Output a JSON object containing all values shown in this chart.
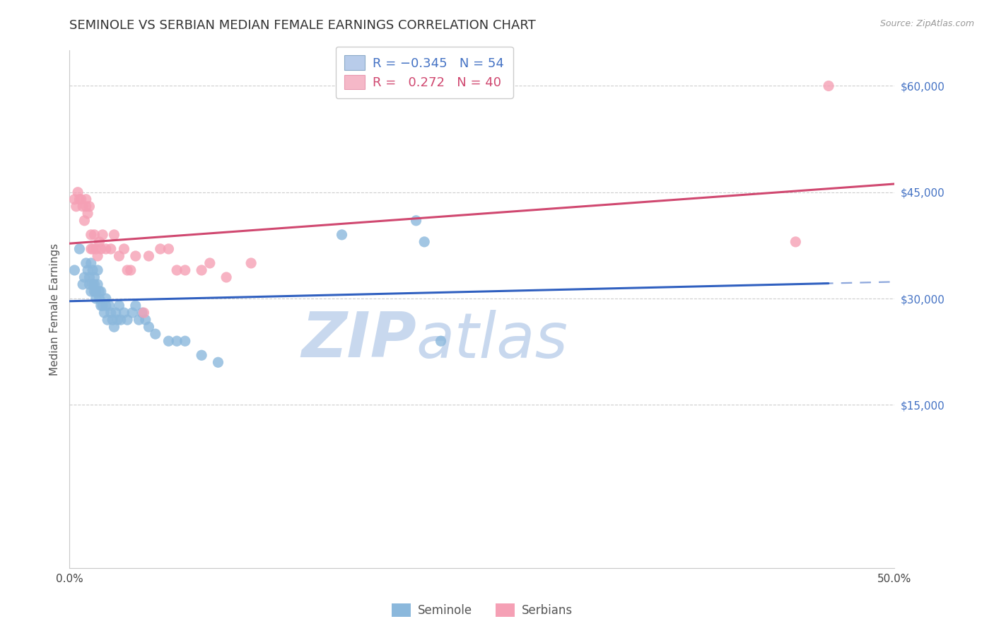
{
  "title": "SEMINOLE VS SERBIAN MEDIAN FEMALE EARNINGS CORRELATION CHART",
  "source": "Source: ZipAtlas.com",
  "ylabel": "Median Female Earnings",
  "ytick_labels": [
    "$15,000",
    "$30,000",
    "$45,000",
    "$60,000"
  ],
  "ytick_values": [
    15000,
    30000,
    45000,
    60000
  ],
  "grid_values": [
    15000,
    30000,
    45000,
    60000
  ],
  "xmin": 0.0,
  "xmax": 0.5,
  "ymin": -8000,
  "ymax": 65000,
  "seminole_R": -0.345,
  "seminole_N": 54,
  "serbian_R": 0.272,
  "serbian_N": 40,
  "seminole_color": "#8BB8DC",
  "serbian_color": "#F5A0B5",
  "seminole_line_color": "#3060C0",
  "serbian_line_color": "#D04870",
  "watermark_zip": "ZIP",
  "watermark_atlas": "atlas",
  "watermark_color": "#C8D8EE",
  "legend_bg_seminole": "#B8CCEA",
  "legend_bg_serbian": "#F5B8C8",
  "seminole_x": [
    0.003,
    0.006,
    0.008,
    0.009,
    0.01,
    0.011,
    0.012,
    0.012,
    0.013,
    0.013,
    0.014,
    0.014,
    0.015,
    0.015,
    0.015,
    0.016,
    0.016,
    0.017,
    0.017,
    0.018,
    0.018,
    0.019,
    0.019,
    0.02,
    0.021,
    0.022,
    0.022,
    0.023,
    0.024,
    0.025,
    0.026,
    0.027,
    0.028,
    0.029,
    0.03,
    0.031,
    0.033,
    0.035,
    0.038,
    0.04,
    0.042,
    0.044,
    0.046,
    0.048,
    0.052,
    0.06,
    0.065,
    0.07,
    0.08,
    0.09,
    0.165,
    0.21,
    0.215,
    0.225
  ],
  "seminole_y": [
    34000,
    37000,
    32000,
    33000,
    35000,
    34000,
    32000,
    33000,
    35000,
    31000,
    34000,
    32000,
    33000,
    32000,
    31000,
    31000,
    30000,
    34000,
    32000,
    30000,
    31000,
    29000,
    31000,
    29000,
    28000,
    30000,
    29000,
    27000,
    29000,
    28000,
    27000,
    26000,
    28000,
    27000,
    29000,
    27000,
    28000,
    27000,
    28000,
    29000,
    27000,
    28000,
    27000,
    26000,
    25000,
    24000,
    24000,
    24000,
    22000,
    21000,
    39000,
    41000,
    38000,
    24000
  ],
  "serbian_x": [
    0.003,
    0.004,
    0.005,
    0.006,
    0.007,
    0.008,
    0.009,
    0.01,
    0.01,
    0.011,
    0.012,
    0.013,
    0.013,
    0.014,
    0.015,
    0.016,
    0.017,
    0.018,
    0.019,
    0.02,
    0.022,
    0.025,
    0.027,
    0.03,
    0.033,
    0.035,
    0.037,
    0.04,
    0.045,
    0.048,
    0.055,
    0.06,
    0.065,
    0.07,
    0.08,
    0.085,
    0.095,
    0.11,
    0.44,
    0.46
  ],
  "serbian_y": [
    44000,
    43000,
    45000,
    44000,
    44000,
    43000,
    41000,
    43000,
    44000,
    42000,
    43000,
    39000,
    37000,
    37000,
    39000,
    37000,
    36000,
    38000,
    37000,
    39000,
    37000,
    37000,
    39000,
    36000,
    37000,
    34000,
    34000,
    36000,
    28000,
    36000,
    37000,
    37000,
    34000,
    34000,
    34000,
    35000,
    33000,
    35000,
    38000,
    60000
  ],
  "sem_line_solid_end": 0.46,
  "title_fontsize": 13,
  "source_fontsize": 9,
  "tick_label_fontsize": 11,
  "legend_fontsize": 13
}
